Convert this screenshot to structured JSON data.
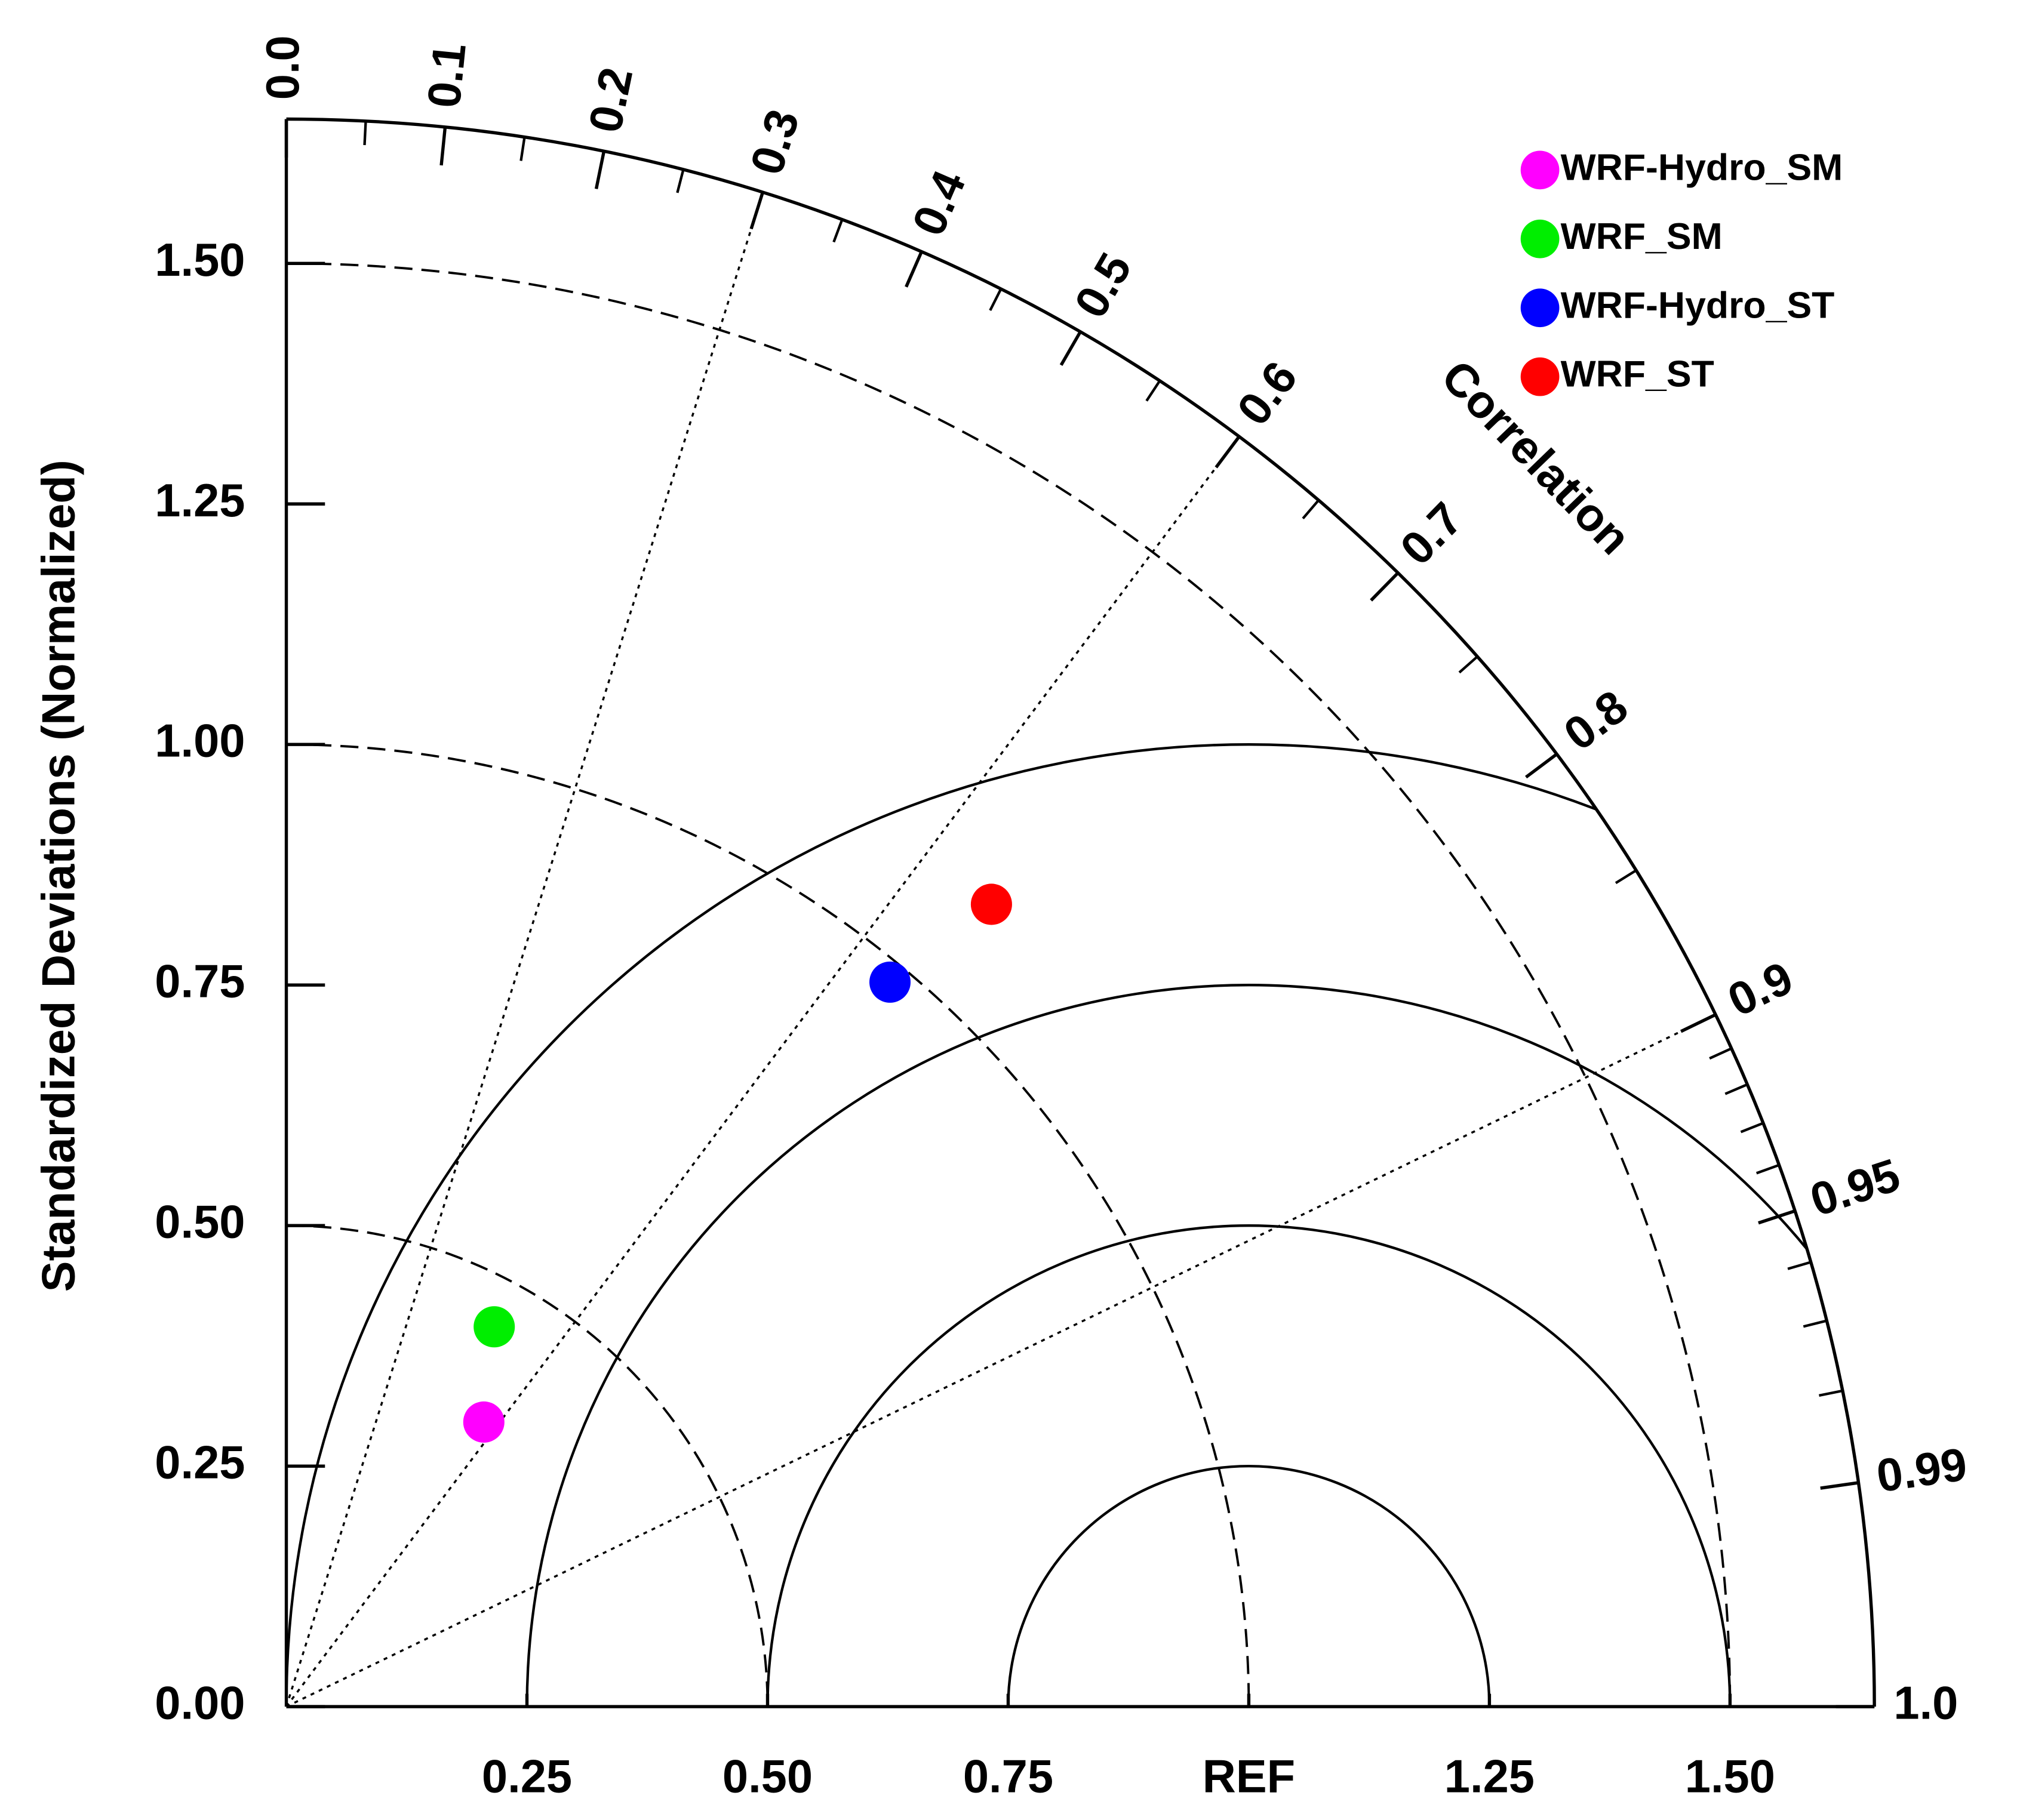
{
  "chart_data": {
    "type": "taylor",
    "y_label": "Standardized Deviations (Normalized)",
    "correlation_label": "Correlation",
    "ylim": [
      0,
      1.65
    ],
    "xlim": [
      0,
      1.65
    ],
    "yticks": [
      {
        "value": 0,
        "label": "0.00"
      },
      0.25,
      {
        "value": 0.5,
        "label": "0.50"
      },
      0.75,
      {
        "value": 1,
        "label": "1.00"
      },
      1.25,
      {
        "value": 1.5,
        "label": "1.50"
      }
    ],
    "xticks": [
      0.25,
      {
        "value": 0.5,
        "label": "0.50"
      },
      0.75,
      {
        "value": 1,
        "label": "REF"
      },
      1.25,
      {
        "value": 1.5,
        "label": "1.50"
      }
    ],
    "corr_ticks": [
      {
        "value": 0,
        "label": "0.0"
      },
      0.1,
      0.2,
      0.3,
      0.4,
      0.5,
      0.6,
      0.7,
      0.8,
      0.9,
      0.95,
      0.99,
      {
        "value": 1,
        "label": "1.0"
      }
    ],
    "corr_minor_ticks": [
      0.05,
      0.15,
      0.25,
      0.35,
      0.45,
      0.55,
      0.65,
      0.75,
      0.85,
      0.91,
      0.92,
      0.93,
      0.94,
      0.96,
      0.97,
      0.98
    ],
    "std_arcs": [
      0.5,
      1.0,
      1.5
    ],
    "rms_arcs": [
      0.25,
      0.5,
      0.75,
      1.0
    ],
    "corr_lines": [
      0.3,
      0.6,
      0.9
    ],
    "series": [
      {
        "name": "WRF-Hydro_SM",
        "color": "#ff00ff",
        "std": 0.36,
        "corr": 0.57
      },
      {
        "name": "WRF_SM",
        "color": "#00ee00",
        "std": 0.45,
        "corr": 0.48
      },
      {
        "name": "WRF-Hydro_ST",
        "color": "#0000ff",
        "std": 0.98,
        "corr": 0.64
      },
      {
        "name": "WRF_ST",
        "color": "#ff0000",
        "std": 1.11,
        "corr": 0.66
      }
    ]
  }
}
